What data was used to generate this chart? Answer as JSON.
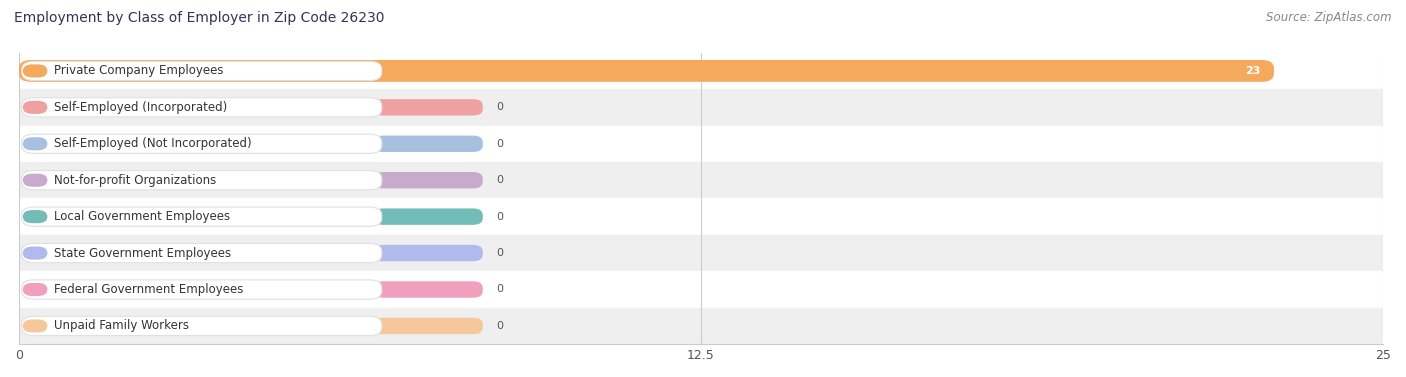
{
  "title": "Employment by Class of Employer in Zip Code 26230",
  "source": "Source: ZipAtlas.com",
  "categories": [
    "Private Company Employees",
    "Self-Employed (Incorporated)",
    "Self-Employed (Not Incorporated)",
    "Not-for-profit Organizations",
    "Local Government Employees",
    "State Government Employees",
    "Federal Government Employees",
    "Unpaid Family Workers"
  ],
  "values": [
    23,
    0,
    0,
    0,
    0,
    0,
    0,
    0
  ],
  "bar_colors": [
    "#F5A95C",
    "#F0A0A0",
    "#A8C0E0",
    "#C8AACC",
    "#72BDB8",
    "#B0BAEC",
    "#F0A0BC",
    "#F5C89C"
  ],
  "xlim": [
    0,
    25
  ],
  "xticks": [
    0,
    12.5,
    25
  ],
  "title_fontsize": 10,
  "source_fontsize": 8.5,
  "value_fontsize": 8,
  "axis_fontsize": 9,
  "label_fontsize": 8.5,
  "row_colors": [
    "#FFFFFF",
    "#EFEFEF"
  ]
}
